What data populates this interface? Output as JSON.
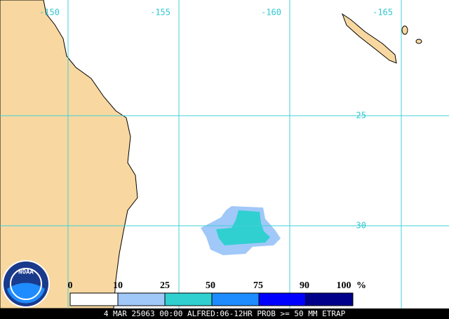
{
  "map": {
    "longitude_labels": [
      "-150",
      "-155",
      "-160",
      "-165"
    ],
    "latitude_labels": [
      "-25",
      "-30"
    ],
    "logo": "NOAA"
  },
  "legend": {
    "labels": [
      "0",
      "10",
      "25",
      "50",
      "75",
      "90",
      "100"
    ],
    "unit": "%",
    "colors": [
      "#ffffff",
      "#a0c8f8",
      "#30d0d0",
      "#1e8cff",
      "#0000ff",
      "#00008b"
    ]
  },
  "footer": {
    "text": "4 MAR 25063 00:00 ALFRED:06-12HR PROB >= 50 MM ETRAP"
  }
}
